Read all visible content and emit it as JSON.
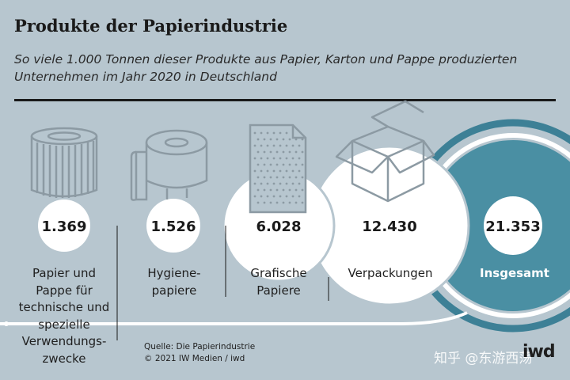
{
  "header": {
    "title": "Produkte der Papierindustrie",
    "subtitle": "So viele 1.000 Tonnen dieser Produkte aus Papier, Karton und Pappe produzierten Unternehmen im Jahr 2020 in Deutschland"
  },
  "chart_data": {
    "type": "bubble",
    "unit": "1.000 Tonnen",
    "categories": [
      "Papier und Pappe für technische und spezielle Verwendungs-zwecke",
      "Hygiene-papiere",
      "Grafische Papiere",
      "Verpackungen",
      "Insgesamt"
    ],
    "values": [
      1369,
      1526,
      6028,
      12430,
      21353
    ],
    "value_labels": [
      "1.369",
      "1.526",
      "6.028",
      "12.430",
      "21.353"
    ],
    "colors": {
      "background": "#b7c6cf",
      "bubble": "#ffffff",
      "total_bubble": "#4a8fa3",
      "total_ring": "#3d8096",
      "icon": "#8c9aa3",
      "text": "#1a1a1a"
    }
  },
  "footer": {
    "source_line1": "Quelle: Die Papierindustrie",
    "source_line2": "© 2021 IW Medien / iwd",
    "logo": "iwd",
    "watermark": "知乎 @东游西荡"
  }
}
